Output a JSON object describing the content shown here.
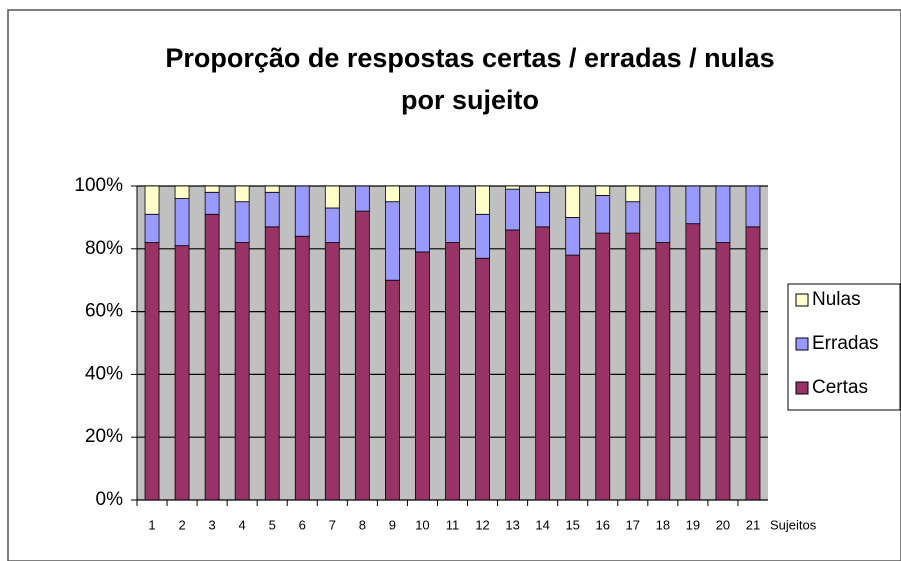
{
  "chart_data": {
    "type": "stacked_bar",
    "title": [
      "Proporção de respostas certas / erradas / nulas",
      "por sujeito"
    ],
    "x_label": "Sujeitos",
    "categories": [
      "1",
      "2",
      "3",
      "4",
      "5",
      "6",
      "7",
      "8",
      "9",
      "10",
      "11",
      "12",
      "13",
      "14",
      "15",
      "16",
      "17",
      "18",
      "19",
      "20",
      "21"
    ],
    "series": [
      {
        "name": "Certas",
        "color": "#993366",
        "values": [
          82,
          81,
          91,
          82,
          87,
          84,
          82,
          92,
          70,
          79,
          82,
          77,
          86,
          87,
          78,
          85,
          85,
          82,
          88,
          82,
          87
        ]
      },
      {
        "name": "Erradas",
        "color": "#9999ff",
        "values": [
          9,
          15,
          7,
          13,
          11,
          16,
          11,
          8,
          25,
          21,
          18,
          14,
          13,
          11,
          12,
          12,
          10,
          18,
          12,
          18,
          13
        ]
      },
      {
        "name": "Nulas",
        "color": "#ffffcc",
        "values": [
          9,
          4,
          2,
          5,
          2,
          0,
          7,
          0,
          5,
          0,
          0,
          9,
          1,
          2,
          10,
          3,
          5,
          0,
          0,
          0,
          0
        ]
      }
    ],
    "ylim": [
      0,
      100
    ],
    "yticks": [
      {
        "value": 0,
        "label": "0%"
      },
      {
        "value": 20,
        "label": "20%"
      },
      {
        "value": 40,
        "label": "40%"
      },
      {
        "value": 60,
        "label": "60%"
      },
      {
        "value": 80,
        "label": "80%"
      },
      {
        "value": 100,
        "label": "100%"
      }
    ],
    "grid": true,
    "legend": "right"
  }
}
